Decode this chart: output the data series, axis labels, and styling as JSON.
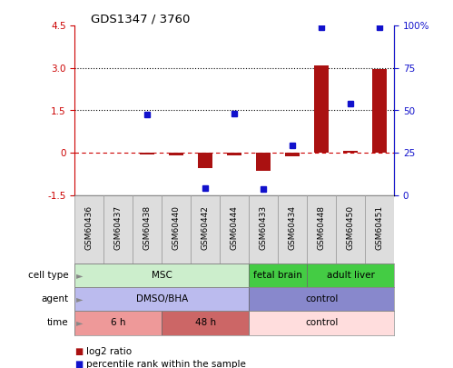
{
  "title": "GDS1347 / 3760",
  "samples": [
    "GSM60436",
    "GSM60437",
    "GSM60438",
    "GSM60440",
    "GSM60442",
    "GSM60444",
    "GSM60433",
    "GSM60434",
    "GSM60448",
    "GSM60450",
    "GSM60451"
  ],
  "log2_ratio": [
    0.0,
    0.0,
    -0.05,
    -0.1,
    -0.55,
    -0.08,
    -0.65,
    -0.12,
    3.1,
    0.08,
    2.95
  ],
  "percentile_rank": [
    null,
    null,
    1.35,
    null,
    -1.25,
    1.4,
    -1.3,
    0.25,
    4.45,
    1.75,
    4.45
  ],
  "ylim_left": [
    -1.5,
    4.5
  ],
  "left_yticks": [
    -1.5,
    0.0,
    1.5,
    3.0,
    4.5
  ],
  "right_ticks_pct": [
    0,
    25,
    50,
    75,
    100
  ],
  "bar_color": "#aa1111",
  "point_color": "#1111cc",
  "cell_type_groups": [
    {
      "label": "MSC",
      "start": 0,
      "end": 5,
      "color": "#cceecc"
    },
    {
      "label": "fetal brain",
      "start": 6,
      "end": 7,
      "color": "#44cc44"
    },
    {
      "label": "adult liver",
      "start": 8,
      "end": 10,
      "color": "#44cc44"
    }
  ],
  "agent_groups": [
    {
      "label": "DMSO/BHA",
      "start": 0,
      "end": 5,
      "color": "#bbbbee"
    },
    {
      "label": "control",
      "start": 6,
      "end": 10,
      "color": "#8888cc"
    }
  ],
  "time_groups": [
    {
      "label": "6 h",
      "start": 0,
      "end": 2,
      "color": "#ee9999"
    },
    {
      "label": "48 h",
      "start": 3,
      "end": 5,
      "color": "#cc6666"
    },
    {
      "label": "control",
      "start": 6,
      "end": 10,
      "color": "#ffdddd"
    }
  ],
  "row_labels": [
    "cell type",
    "agent",
    "time"
  ],
  "legend_items": [
    {
      "label": "log2 ratio",
      "color": "#aa1111"
    },
    {
      "label": "percentile rank within the sample",
      "color": "#1111cc"
    }
  ]
}
